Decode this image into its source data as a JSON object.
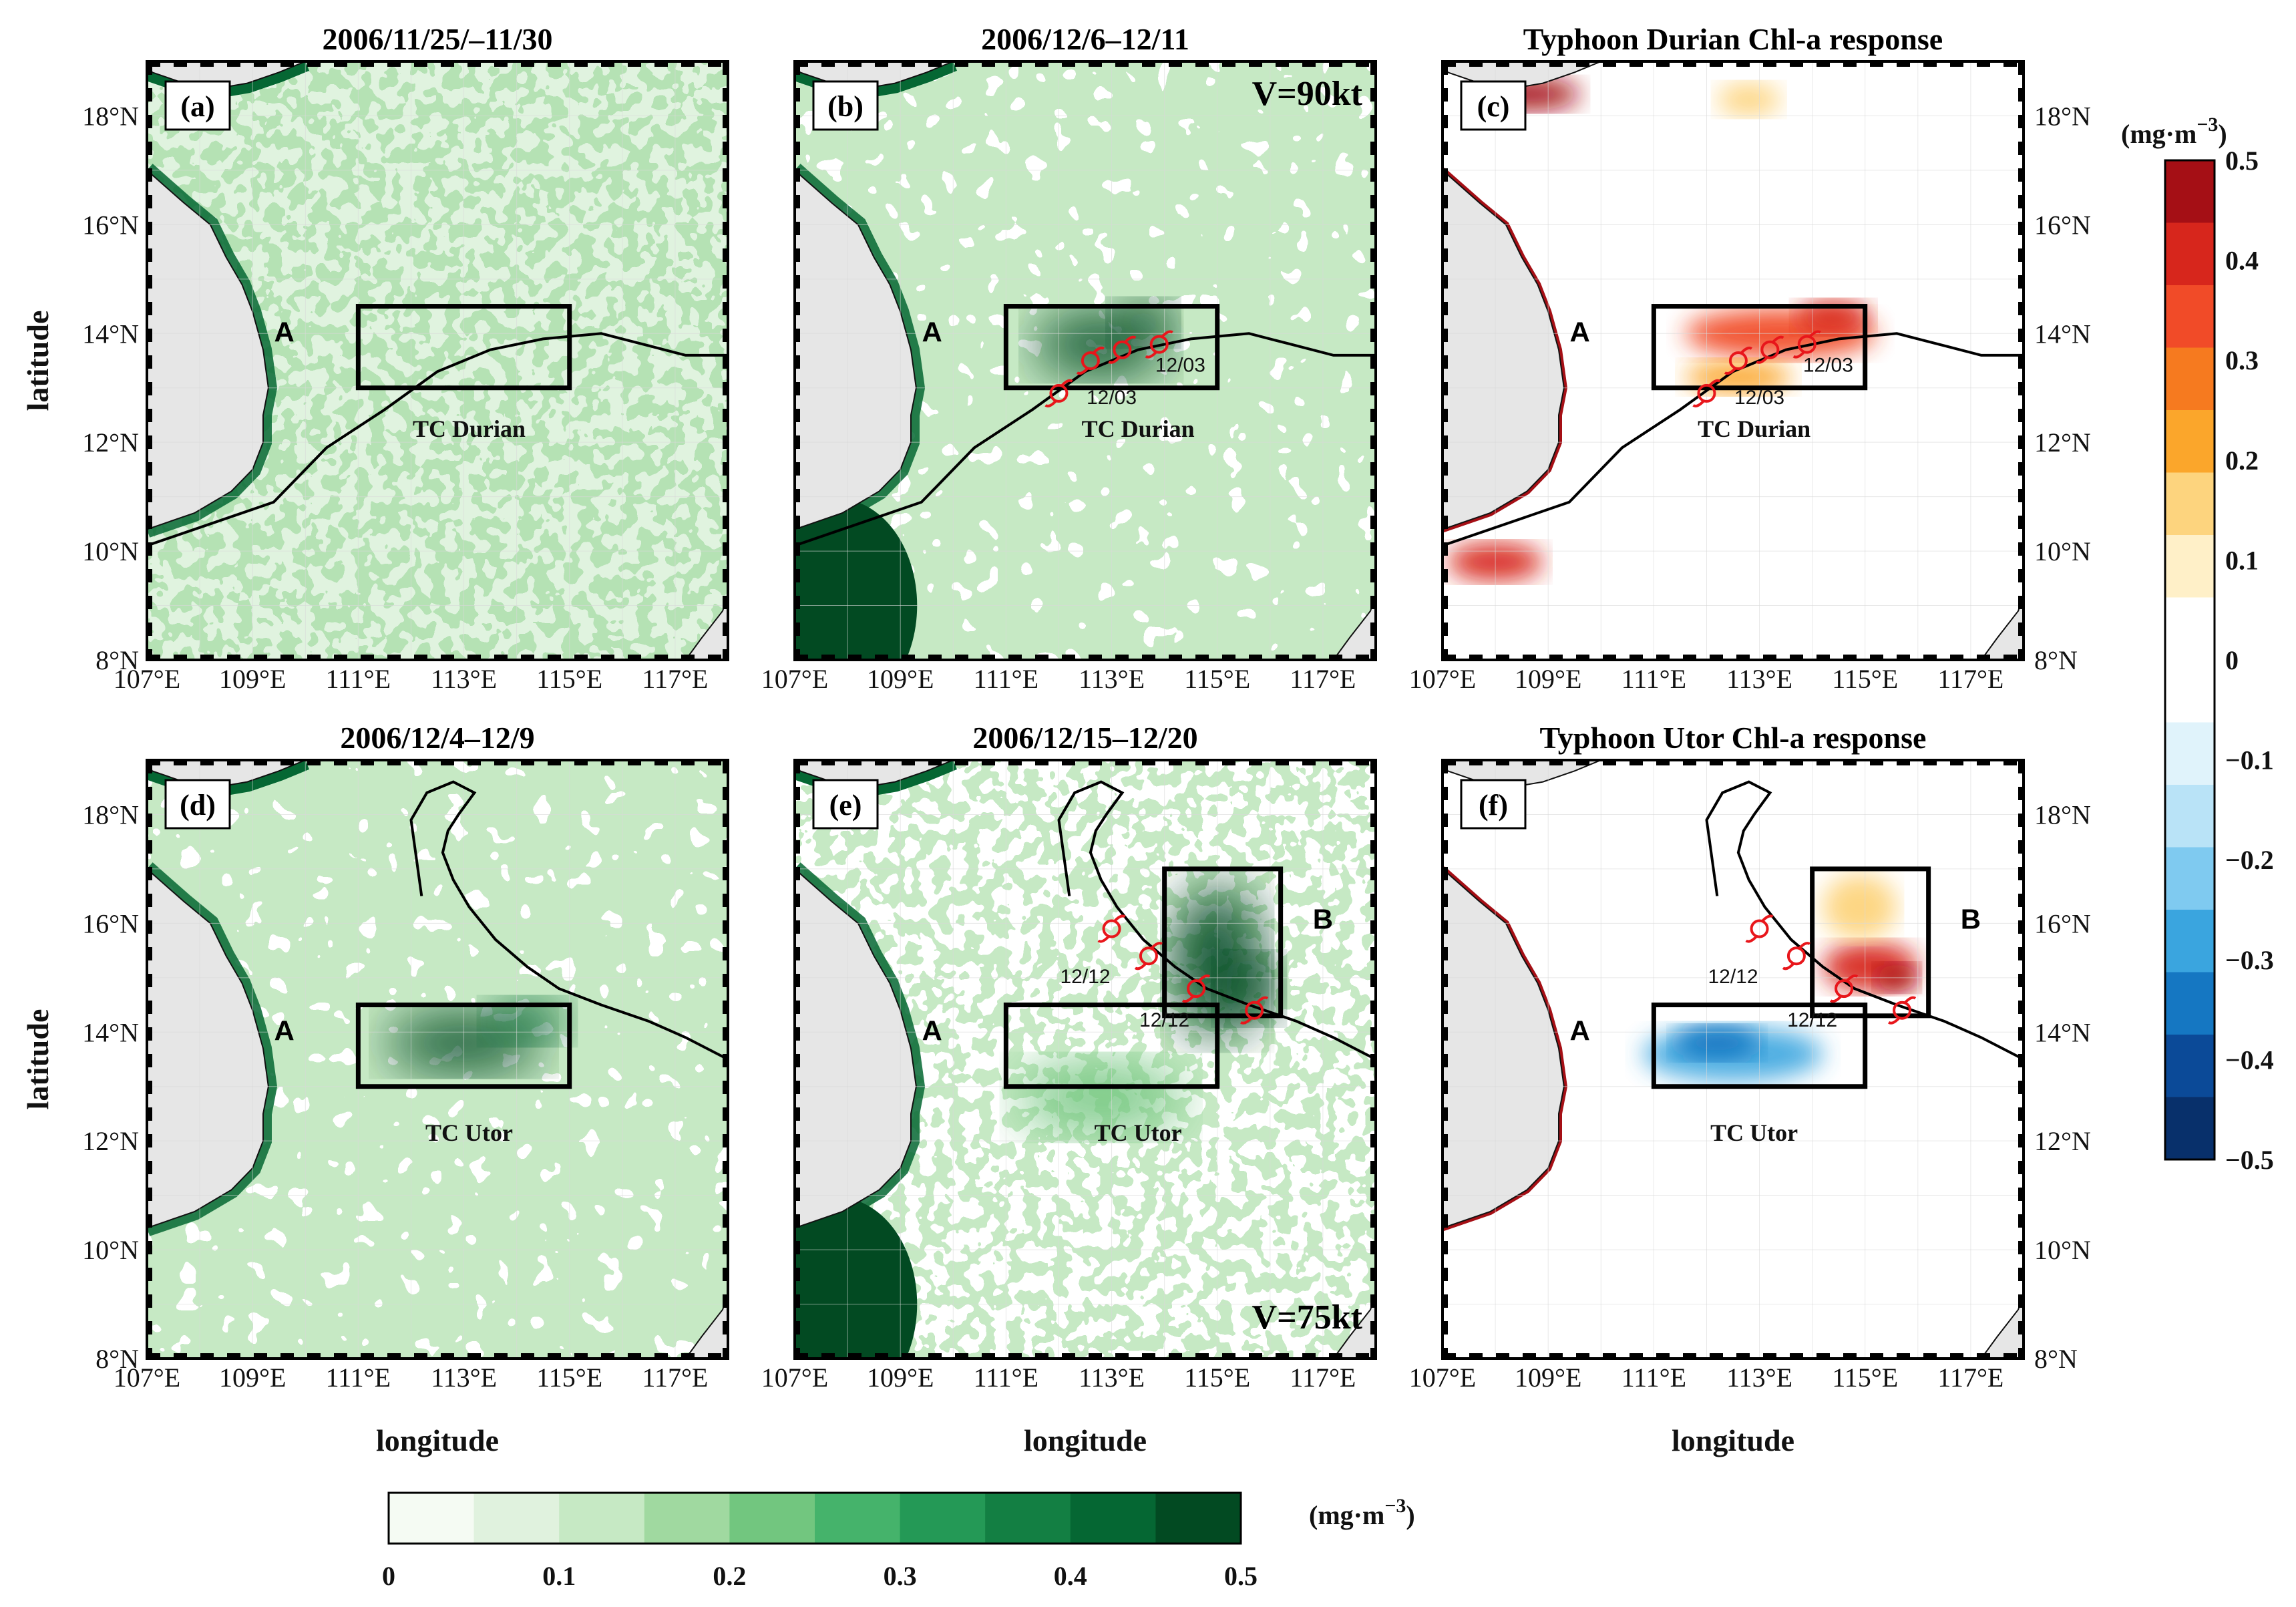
{
  "chart_data": {
    "type": "heatmap",
    "xlabel": "longitude",
    "ylabel": "latitude",
    "x_ticks": [
      "107°E",
      "109°E",
      "111°E",
      "113°E",
      "115°E",
      "117°E"
    ],
    "y_ticks": [
      "8°N",
      "10°N",
      "12°N",
      "14°N",
      "16°N",
      "18°N"
    ],
    "xlim": [
      107,
      118
    ],
    "ylim": [
      8,
      19
    ],
    "panels": [
      {
        "id": "a",
        "label": "(a)",
        "title": "2006/11/25/–11/30",
        "kind": "chl",
        "storm": "TC Durian",
        "track": "durian",
        "boxes": [
          {
            "name": "A",
            "lon": [
              111,
              115
            ],
            "lat": [
              13,
              14.5
            ]
          }
        ],
        "speed": "",
        "marks": [],
        "dates": []
      },
      {
        "id": "b",
        "label": "(b)",
        "title": "2006/12/6–12/11",
        "kind": "chl",
        "storm": "TC Durian",
        "track": "durian",
        "boxes": [
          {
            "name": "A",
            "lon": [
              111,
              115
            ],
            "lat": [
              13,
              14.5
            ]
          }
        ],
        "speed": "V=90kt",
        "marks": [
          [
            112.0,
            12.9
          ],
          [
            112.6,
            13.5
          ],
          [
            113.2,
            13.7
          ],
          [
            113.9,
            13.8
          ]
        ],
        "dates": [
          {
            "text": "12/03",
            "lon": 113.0,
            "lat": 12.7
          },
          {
            "text": "12/03",
            "lon": 114.3,
            "lat": 13.3
          }
        ]
      },
      {
        "id": "c",
        "label": "(c)",
        "title": "Typhoon Durian Chl-a response",
        "kind": "diff",
        "storm": "TC Durian",
        "track": "durian",
        "boxes": [
          {
            "name": "A",
            "lon": [
              111,
              115
            ],
            "lat": [
              13,
              14.5
            ]
          }
        ],
        "speed": "",
        "marks": [
          [
            112.0,
            12.9
          ],
          [
            112.6,
            13.5
          ],
          [
            113.2,
            13.7
          ],
          [
            113.9,
            13.8
          ]
        ],
        "dates": [
          {
            "text": "12/03",
            "lon": 113.0,
            "lat": 12.7
          },
          {
            "text": "12/03",
            "lon": 114.3,
            "lat": 13.3
          }
        ]
      },
      {
        "id": "d",
        "label": "(d)",
        "title": "2006/12/4–12/9",
        "kind": "chl",
        "storm": "TC Utor",
        "track": "utor",
        "boxes": [
          {
            "name": "A",
            "lon": [
              111,
              115
            ],
            "lat": [
              13,
              14.5
            ]
          }
        ],
        "speed": "",
        "marks": [],
        "dates": []
      },
      {
        "id": "e",
        "label": "(e)",
        "title": "2006/12/15–12/20",
        "kind": "chl",
        "storm": "TC Utor",
        "track": "utor",
        "boxes": [
          {
            "name": "A",
            "lon": [
              111,
              115
            ],
            "lat": [
              13,
              14.5
            ]
          },
          {
            "name": "B",
            "lon": [
              114,
              116.2
            ],
            "lat": [
              14.3,
              17
            ]
          }
        ],
        "speed": "V=75kt",
        "marks": [
          [
            113.0,
            15.9
          ],
          [
            113.7,
            15.4
          ],
          [
            114.6,
            14.8
          ],
          [
            115.7,
            14.4
          ]
        ],
        "dates": [
          {
            "text": "12/12",
            "lon": 112.5,
            "lat": 14.9
          },
          {
            "text": "12/12",
            "lon": 114.0,
            "lat": 14.1
          }
        ]
      },
      {
        "id": "f",
        "label": "(f)",
        "title": "Typhoon Utor Chl-a response",
        "kind": "diff",
        "storm": "TC Utor",
        "track": "utor",
        "boxes": [
          {
            "name": "A",
            "lon": [
              111,
              115
            ],
            "lat": [
              13,
              14.5
            ]
          },
          {
            "name": "B",
            "lon": [
              114,
              116.2
            ],
            "lat": [
              14.3,
              17
            ]
          }
        ],
        "speed": "",
        "marks": [
          [
            113.0,
            15.9
          ],
          [
            113.7,
            15.4
          ],
          [
            114.6,
            14.8
          ],
          [
            115.7,
            14.4
          ]
        ],
        "dates": [
          {
            "text": "12/12",
            "lon": 112.5,
            "lat": 14.9
          },
          {
            "text": "12/12",
            "lon": 114.0,
            "lat": 14.1
          }
        ]
      }
    ],
    "tracks": {
      "durian": [
        [
          107,
          10.1
        ],
        [
          109.4,
          10.9
        ],
        [
          110.4,
          11.9
        ],
        [
          111.5,
          12.6
        ],
        [
          112.5,
          13.3
        ],
        [
          113.5,
          13.7
        ],
        [
          114.5,
          13.9
        ],
        [
          115.6,
          14.0
        ],
        [
          116.4,
          13.8
        ],
        [
          117.2,
          13.6
        ],
        [
          118,
          13.6
        ]
      ],
      "utor": [
        [
          112.2,
          16.5
        ],
        [
          112.0,
          17.9
        ],
        [
          112.3,
          18.4
        ],
        [
          112.8,
          18.6
        ],
        [
          113.2,
          18.4
        ],
        [
          112.9,
          18.0
        ],
        [
          112.7,
          17.7
        ],
        [
          112.6,
          17.3
        ],
        [
          112.8,
          16.8
        ],
        [
          113.1,
          16.3
        ],
        [
          113.6,
          15.7
        ],
        [
          114.2,
          15.2
        ],
        [
          114.8,
          14.8
        ],
        [
          115.6,
          14.5
        ],
        [
          116.5,
          14.2
        ],
        [
          117.2,
          13.9
        ],
        [
          118,
          13.5
        ]
      ]
    },
    "colorbar_chl": {
      "unit": "(mg·m",
      "unit_sup": "−3",
      "unit_close": ")",
      "ticks": [
        "0",
        "0.1",
        "0.2",
        "0.3",
        "0.4",
        "0.5"
      ],
      "colors": [
        "#f5fbf3",
        "#e0f2de",
        "#c6e9c4",
        "#a0d9a0",
        "#72c67f",
        "#45b36b",
        "#249956",
        "#137f43",
        "#056733",
        "#024a22"
      ]
    },
    "colorbar_diff": {
      "unit": "(mg·m",
      "unit_sup": "−3",
      "unit_close": ")",
      "ticks": [
        "0.5",
        "0.4",
        "0.3",
        "0.2",
        "0.1",
        "0",
        "−0.1",
        "−0.2",
        "−0.3",
        "−0.4",
        "−0.5"
      ],
      "colors": [
        "#a50f15",
        "#d7261c",
        "#f14b28",
        "#f67a1f",
        "#fba62b",
        "#fdd47e",
        "#fff0c8",
        "#ffffff",
        "#ffffff",
        "#e0f3fb",
        "#b9e3f7",
        "#7fcaf0",
        "#3aa5df",
        "#1577c2",
        "#0b4a98",
        "#08306b"
      ]
    }
  }
}
